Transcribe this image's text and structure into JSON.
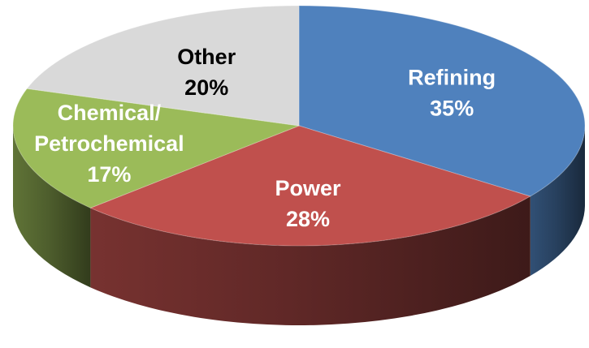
{
  "chart_data": {
    "type": "pie",
    "style": "3d",
    "legend": "none",
    "slices": [
      {
        "name": "Refining",
        "value": 35,
        "value_label": "35%",
        "color": "#4f81bd",
        "label_color": "#ffffff"
      },
      {
        "name": "Power",
        "value": 28,
        "value_label": "28%",
        "color": "#c0504d",
        "label_color": "#ffffff"
      },
      {
        "name": "Chemical/ Petrochemical",
        "name_lines": [
          "Chemical/",
          "Petrochemical"
        ],
        "value": 17,
        "value_label": "17%",
        "color": "#9bbb59",
        "label_color": "#ffffff"
      },
      {
        "name": "Other",
        "value": 20,
        "value_label": "20%",
        "color": "#d9d9d9",
        "label_color": "#000000"
      }
    ]
  }
}
